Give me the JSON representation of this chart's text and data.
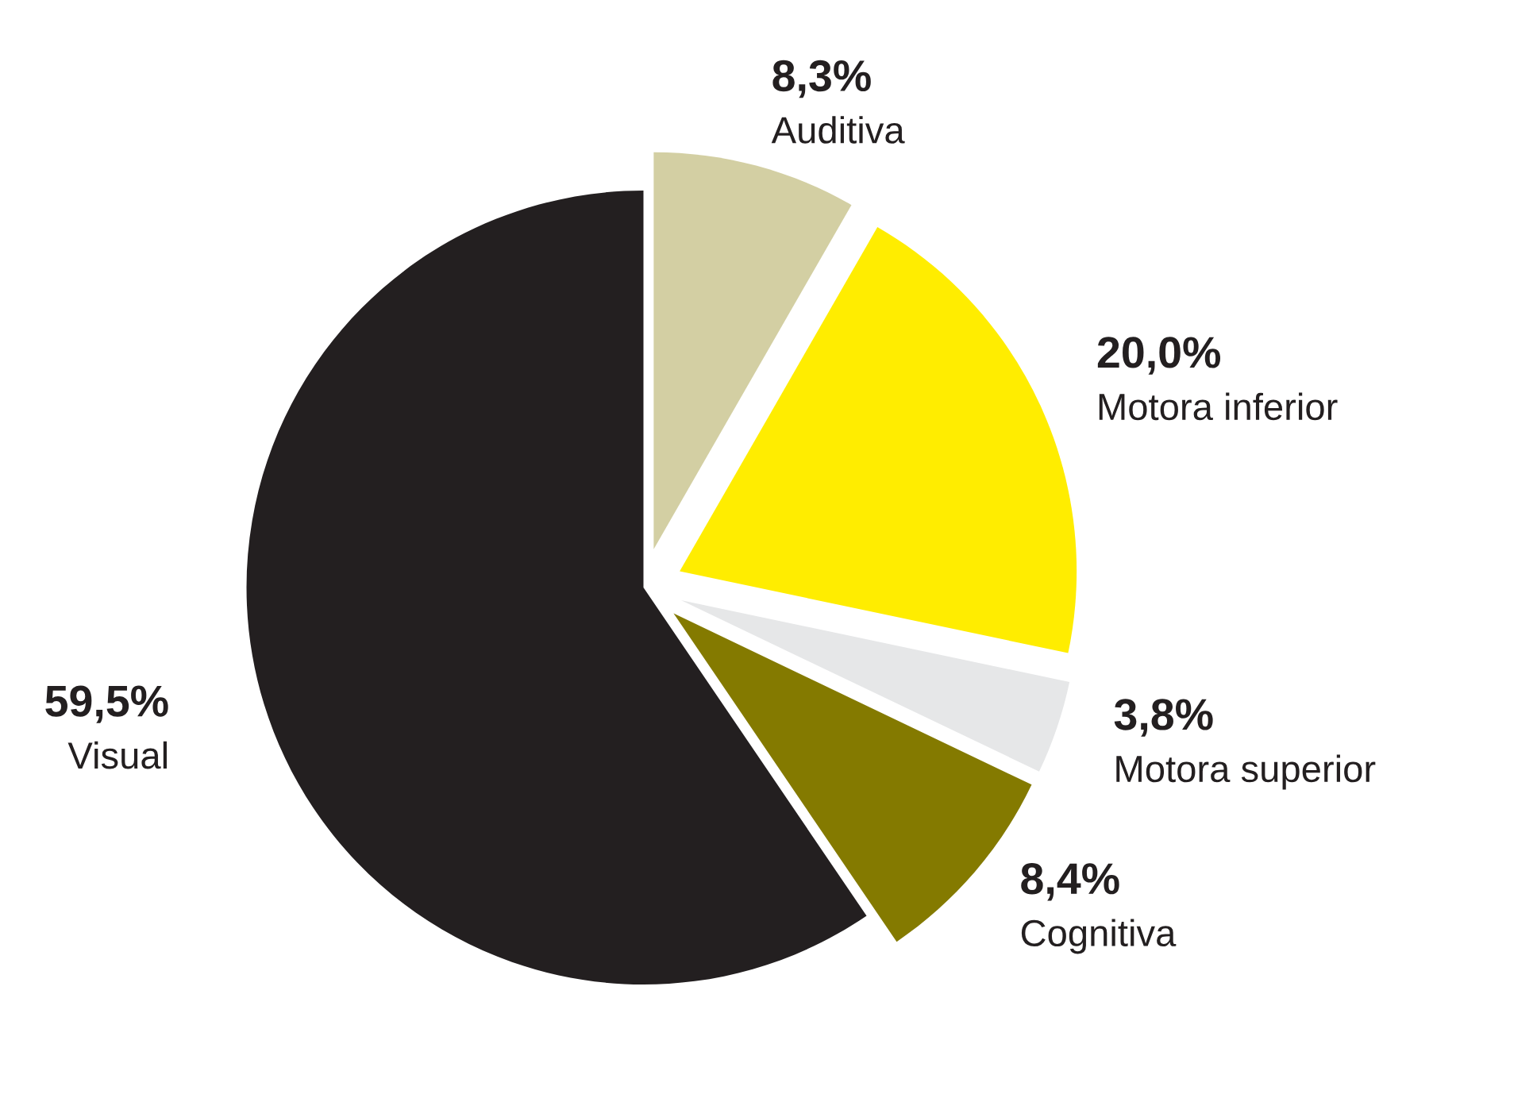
{
  "chart_data": {
    "type": "pie",
    "categories": [
      "Auditiva",
      "Motora inferior",
      "Motora superior",
      "Cognitiva",
      "Visual"
    ],
    "values": [
      8.3,
      20.0,
      3.8,
      8.4,
      59.5
    ],
    "colors": [
      "#d3cfa3",
      "#ffed00",
      "#e6e7e8",
      "#847a00",
      "#231f20"
    ],
    "value_labels": [
      "8,3%",
      "20,0%",
      "3,8%",
      "8,4%",
      "59,5%"
    ]
  }
}
